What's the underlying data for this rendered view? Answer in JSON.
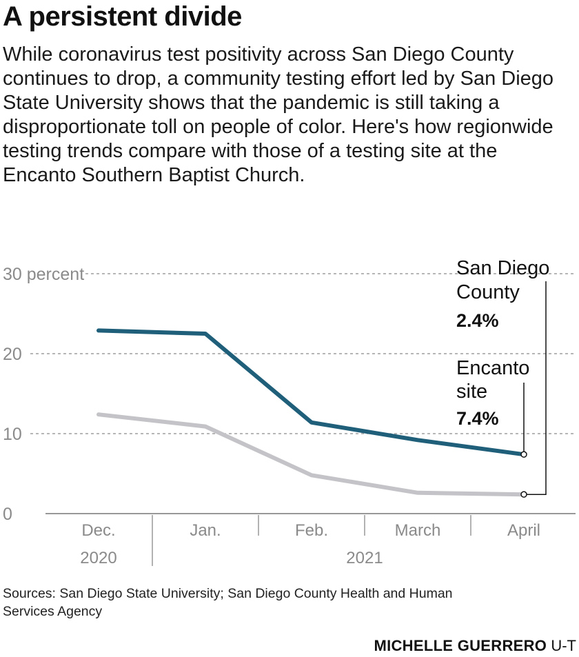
{
  "header": {
    "title": "A persistent divide",
    "dek": "While coronavirus test positivity across San Diego County continues to drop, a community testing effort led by San Diego State University shows that the pandemic is still taking a disproportionate toll on people of color. Here's how regionwide testing trends compare with those of a testing site at the Encanto Southern Baptist Church."
  },
  "chart_data": {
    "type": "line",
    "categories": [
      "Dec.",
      "Jan.",
      "Feb.",
      "March",
      "April"
    ],
    "year_labels": [
      {
        "label": "2020",
        "categories": [
          "Dec."
        ]
      },
      {
        "label": "2021",
        "categories": [
          "Jan.",
          "Feb.",
          "March",
          "April"
        ]
      }
    ],
    "series": [
      {
        "name": "Encanto site",
        "values": [
          22.9,
          22.5,
          11.4,
          9.2,
          7.4
        ],
        "color": "#1f5f7a",
        "end_label": "7.4%"
      },
      {
        "name": "San Diego County",
        "values": [
          12.4,
          10.9,
          4.8,
          2.6,
          2.4
        ],
        "color": "#c4c4c8",
        "end_label": "2.4%"
      }
    ],
    "y_ticks": [
      {
        "value": 0,
        "label": "0"
      },
      {
        "value": 10,
        "label": "10"
      },
      {
        "value": 20,
        "label": "20"
      },
      {
        "value": 30,
        "label": "30 percent"
      }
    ],
    "ylim": [
      0,
      30
    ],
    "grid": true
  },
  "labels": {
    "county_line1": "San Diego",
    "county_line2": "County",
    "county_value": "2.4%",
    "encanto_line1": "Encanto",
    "encanto_line2": "site",
    "encanto_value": "7.4%"
  },
  "footer": {
    "sources": "Sources: San Diego State University; San Diego County Health and Human Services Agency",
    "credit_name": "MICHELLE GUERRERO",
    "credit_org": "U-T"
  },
  "colors": {
    "encanto": "#1f5f7a",
    "county": "#c4c4c8",
    "grid": "#8a8a8a",
    "tick_text": "#8a8a8a"
  }
}
